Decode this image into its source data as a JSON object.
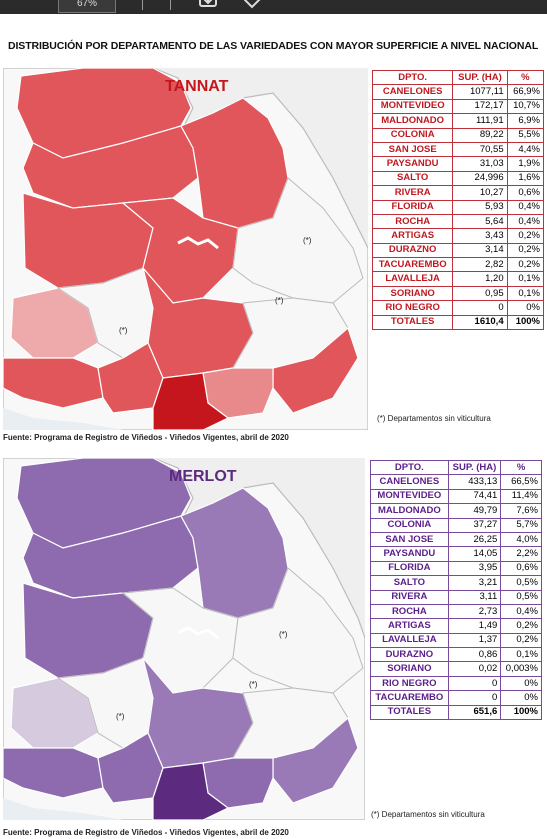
{
  "toolbar": {
    "zoom_value": "67%",
    "download_icon": "download-icon",
    "tag_icon": "tag-icon"
  },
  "doc_title": "DISTRIBUCIÓN POR DEPARTAMENTO DE LAS VARIEDADES CON MAYOR SUPERFICIE A NIVEL NACIONAL",
  "tannat": {
    "map_title": "TANNAT",
    "headers": [
      "DPTO.",
      "SUP. (HA)",
      "%"
    ],
    "rows": [
      [
        "CANELONES",
        "1077,11",
        "66,9%"
      ],
      [
        "MONTEVIDEO",
        "172,17",
        "10,7%"
      ],
      [
        "MALDONADO",
        "111,91",
        "6,9%"
      ],
      [
        "COLONIA",
        "89,22",
        "5,5%"
      ],
      [
        "SAN JOSE",
        "70,55",
        "4,4%"
      ],
      [
        "PAYSANDU",
        "31,03",
        "1,9%"
      ],
      [
        "SALTO",
        "24,996",
        "1,6%"
      ],
      [
        "RIVERA",
        "10,27",
        "0,6%"
      ],
      [
        "FLORIDA",
        "5,93",
        "0,4%"
      ],
      [
        "ROCHA",
        "5,64",
        "0,4%"
      ],
      [
        "ARTIGAS",
        "3,43",
        "0,2%"
      ],
      [
        "DURAZNO",
        "3,14",
        "0,2%"
      ],
      [
        "TACUAREMBO",
        "2,82",
        "0,2%"
      ],
      [
        "LAVALLEJA",
        "1,20",
        "0,1%"
      ],
      [
        "SORIANO",
        "0,95",
        "0,1%"
      ],
      [
        "RIO NEGRO",
        "0",
        "0%"
      ]
    ],
    "total": [
      "TOTALES",
      "1610,4",
      "100%"
    ],
    "note": "(*) Departamentos sin viticultura",
    "source": "Fuente: Programa de Registro de Viñedos - Viñedos Vigentes, abril de 2020",
    "marker": "(*)",
    "colors": {
      "dark": "#c4161c",
      "mid": "#e0565a",
      "light": "#eeaaaa",
      "none": "#f7f7f7"
    }
  },
  "merlot": {
    "map_title": "MERLOT",
    "headers": [
      "DPTO.",
      "SUP. (HA)",
      "%"
    ],
    "rows": [
      [
        "CANELONES",
        "433,13",
        "66,5%"
      ],
      [
        "MONTEVIDEO",
        "74,41",
        "11,4%"
      ],
      [
        "MALDONADO",
        "49,79",
        "7,6%"
      ],
      [
        "COLONIA",
        "37,27",
        "5,7%"
      ],
      [
        "SAN JOSE",
        "26,25",
        "4,0%"
      ],
      [
        "PAYSANDU",
        "14,05",
        "2,2%"
      ],
      [
        "FLORIDA",
        "3,95",
        "0,6%"
      ],
      [
        "SALTO",
        "3,21",
        "0,5%"
      ],
      [
        "RIVERA",
        "3,11",
        "0,5%"
      ],
      [
        "ROCHA",
        "2,73",
        "0,4%"
      ],
      [
        "ARTIGAS",
        "1,49",
        "0,2%"
      ],
      [
        "LAVALLEJA",
        "1,37",
        "0,2%"
      ],
      [
        "DURAZNO",
        "0,86",
        "0,1%"
      ],
      [
        "SORIANO",
        "0,02",
        "0,003%"
      ],
      [
        "RIO NEGRO",
        "0",
        "0%"
      ],
      [
        "TACUAREMBO",
        "0",
        "0%"
      ]
    ],
    "total": [
      "TOTALES",
      "651,6",
      "100%"
    ],
    "note": "(*) Departamentos sin viticultura",
    "source": "Fuente: Programa de Registro de Viñedos - Viñedos Vigentes, abril de 2020",
    "marker": "(*)",
    "colors": {
      "dark": "#5c2a7e",
      "mid": "#8e6aae",
      "light": "#d6cade",
      "none": "#f7f7f7"
    }
  }
}
